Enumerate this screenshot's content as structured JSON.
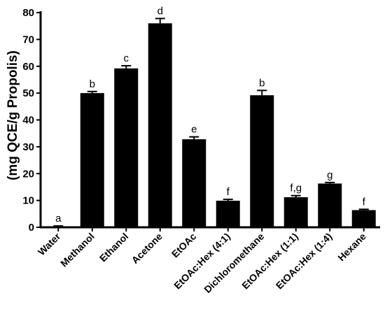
{
  "chart_data": {
    "type": "bar",
    "title": "",
    "xlabel": "",
    "ylabel": "(mg QCE/g Propolis)",
    "ylim": [
      0,
      80
    ],
    "yticks": [
      0,
      10,
      20,
      30,
      40,
      50,
      60,
      70,
      80
    ],
    "categories": [
      "Water",
      "Methanol",
      "Ethanol",
      "Acetone",
      "EtOAc",
      "EtOAc:Hex (4:1)",
      "Dichloromethane",
      "EtOAc:Hex (1:1)",
      "EtOAc:Hex (1:4)",
      "Hexane"
    ],
    "values": [
      0.3,
      50.0,
      59.2,
      76.0,
      32.8,
      9.9,
      49.2,
      11.2,
      16.3,
      6.4
    ],
    "errors": [
      0.2,
      0.6,
      1.0,
      1.8,
      0.9,
      0.5,
      1.8,
      0.6,
      0.4,
      0.3
    ],
    "significance_letters": [
      "a",
      "b",
      "c",
      "d",
      "e",
      "f",
      "b",
      "f,g",
      "g",
      "f"
    ],
    "bar_color": "#000000",
    "grid": false,
    "legend": "none"
  }
}
